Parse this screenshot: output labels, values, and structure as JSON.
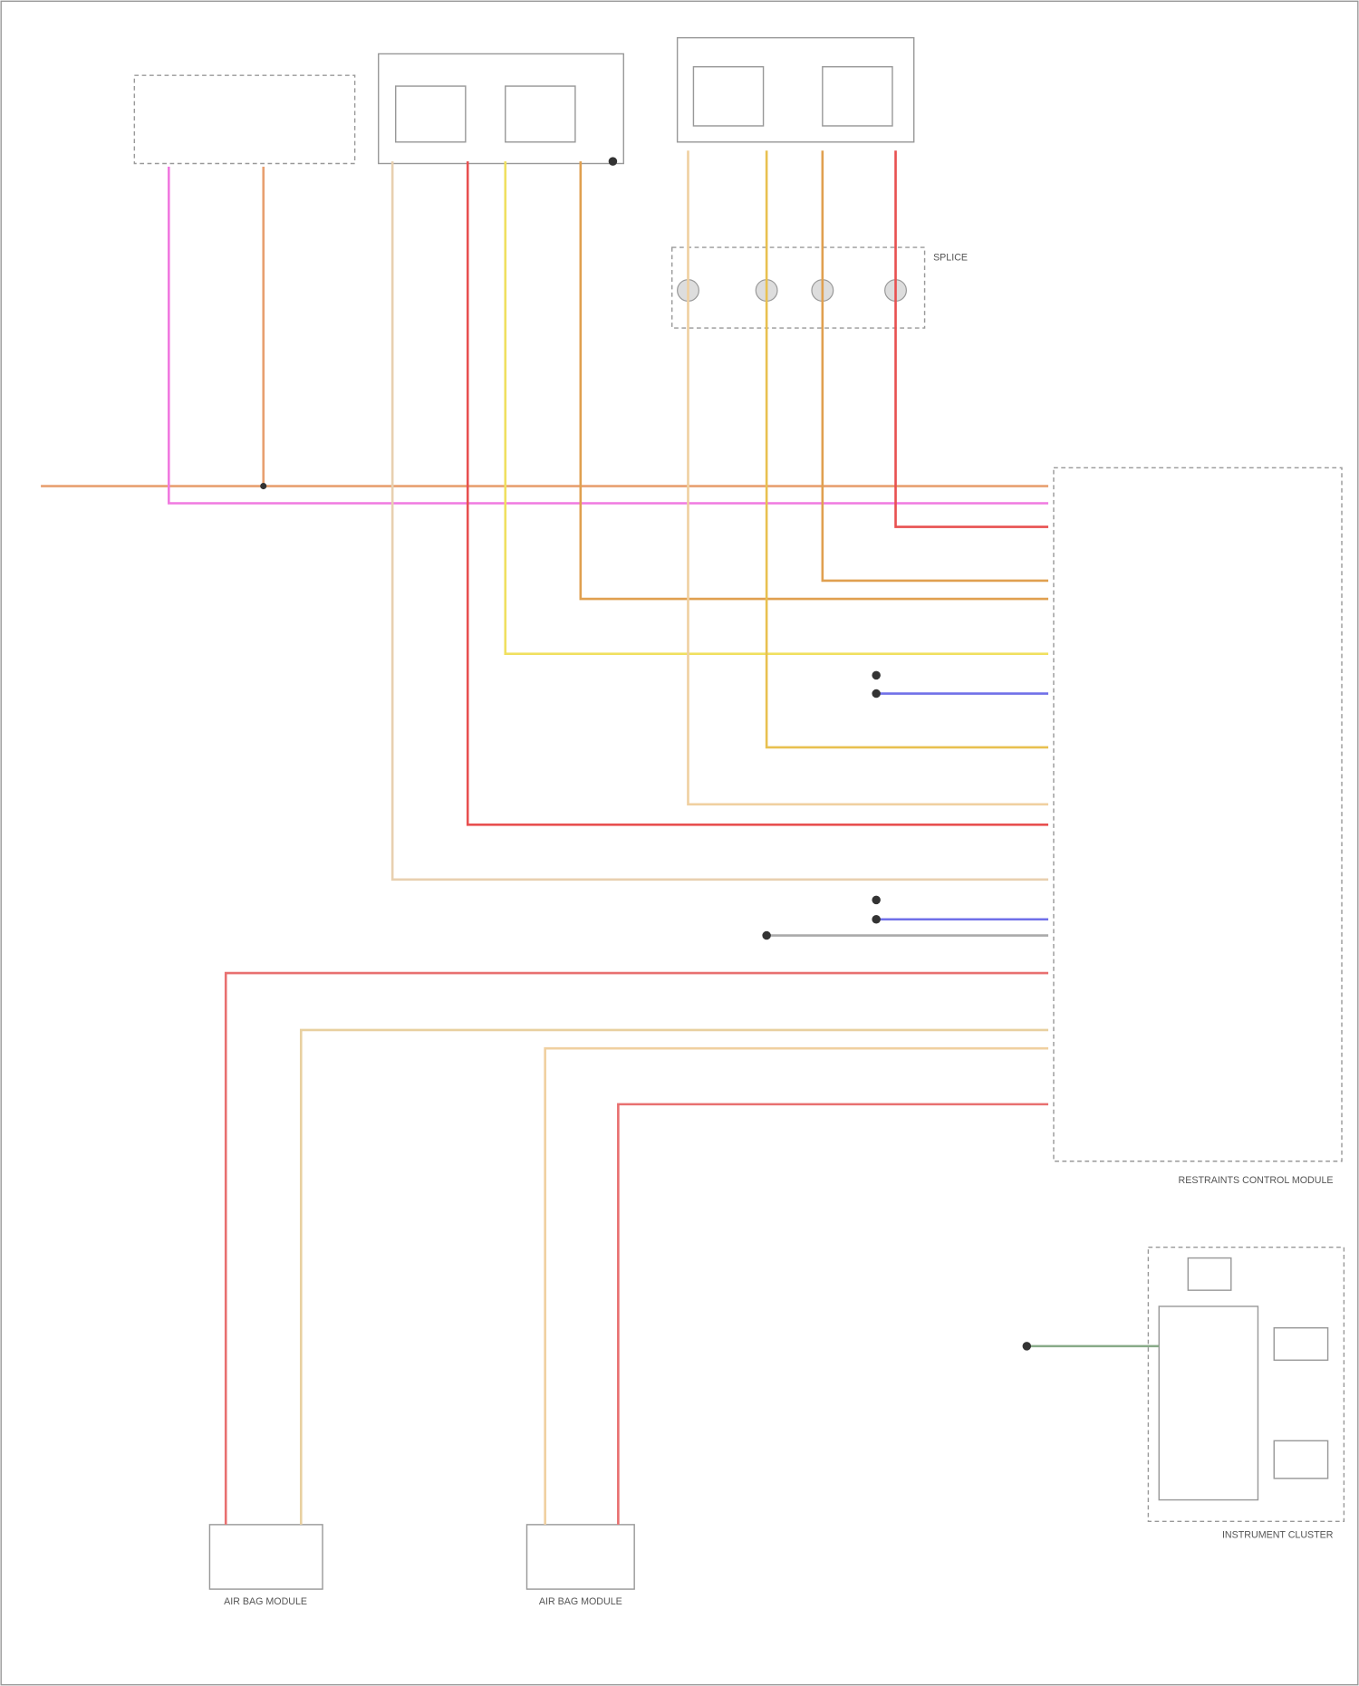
{
  "labels": {
    "rcm": "RESTRAINTS CONTROL MODULE",
    "cluster": "INSTRUMENT CLUSTER",
    "left_module": "AIR BAG MODULE",
    "right_module": "AIR BAG MODULE",
    "splice": "SPLICE"
  }
}
